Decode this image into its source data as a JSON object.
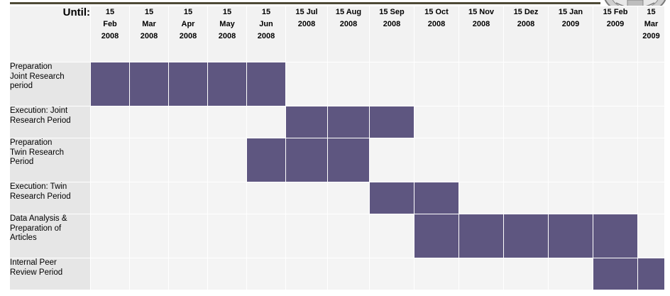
{
  "header": {
    "until_label": "Until:",
    "columns": [
      "15\nFeb\n2008",
      "15\nMar\n2008",
      "15\nApr\n2008",
      "15\nMay\n2008",
      "15\nJun\n2008",
      "15 Jul\n2008",
      "15 Aug\n2008",
      "15 Sep\n2008",
      "15 Oct\n2008",
      "15 Nov\n2008",
      "15 Dez\n2008",
      "15 Jan\n2009",
      "15 Feb\n2009",
      "15\nMar\n2009"
    ]
  },
  "tasks": [
    {
      "label": "Preparation\nJoint Research\nperiod",
      "start": 0,
      "end": 4
    },
    {
      "label": "Execution: Joint\nResearch Period",
      "start": 5,
      "end": 7
    },
    {
      "label": "Preparation\nTwin Research\nPeriod",
      "start": 4,
      "end": 6
    },
    {
      "label": "Execution: Twin\nResearch Period",
      "start": 7,
      "end": 8
    },
    {
      "label": "Data Analysis &\nPreparation of\nArticles",
      "start": 8,
      "end": 12
    },
    {
      "label": "Internal Peer\nReview Period",
      "start": 12,
      "end": 13
    }
  ],
  "colors": {
    "bar": "#5e5680",
    "empty": "#f4f4f4",
    "label_bg": "#e6e6e6",
    "header_bg": "#f2f2f2"
  },
  "icons": {
    "seal": "university-seal-icon"
  }
}
